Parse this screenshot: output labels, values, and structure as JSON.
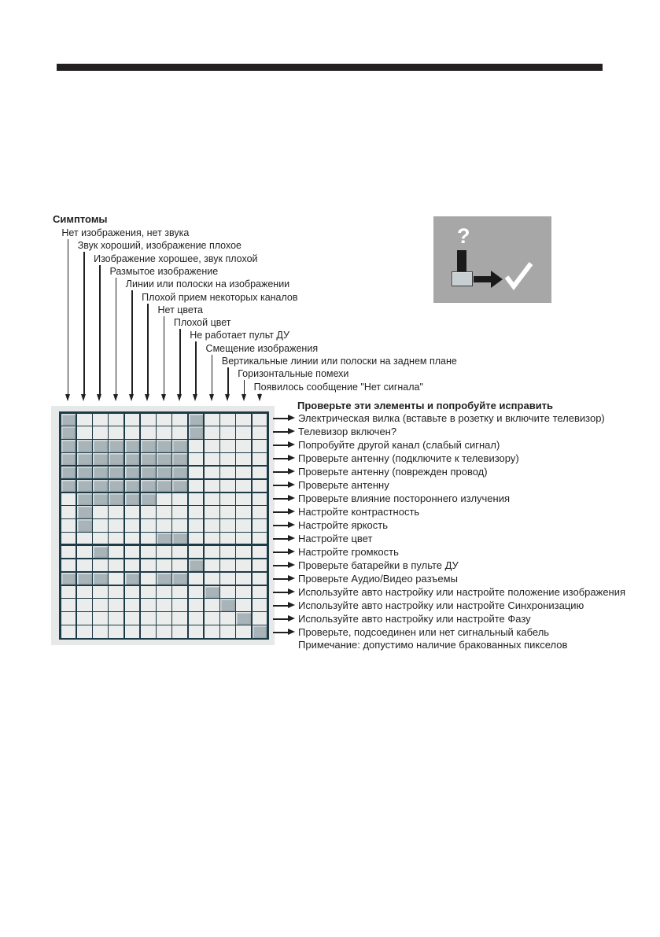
{
  "symptoms": {
    "title": "Симптомы",
    "items": [
      "Нет изображения, нет звука",
      "Звук хороший, изображение плохое",
      "Изображение хорошее, звук плохой",
      "Размытое изображение",
      "Линии или полоски на изображении",
      "Плохой прием некоторых каналов",
      "Нет цвета",
      "Плохой цвет",
      "Не работает пульт ДУ",
      "Смещение изображения",
      "Вертикальные линии или полоски на заднем плане",
      "Горизонтальные помехи",
      "Появилось сообщение \"Нет сигнала\""
    ]
  },
  "remedies": {
    "title": "Проверьте эти элементы и попробуйте исправить",
    "items": [
      "Электрическая вилка (вставьте в розетку и включите телевизор)",
      "Телевизор включен?",
      "Попробуйте другой канал (слабый сигнал)",
      "Проверьте антенну (подключите к телевизору)",
      "Проверьте антенну (поврежден провод)",
      "Проверьте антенну",
      "Проверьте влияние постороннего излучения",
      "Настройте контрастность",
      "Настройте яркость",
      "Настройте цвет",
      "Настройте громкость",
      "Проверьте батарейки в пульте ДУ",
      "Проверьте Аудио/Видео разъемы",
      "Используйте авто настройку или настройте положение изображения",
      "Используйте авто настройку или настройте Синхронизацию",
      "Используйте авто настройку или настройте Фазу",
      "Проверьте, подсоединен или нет сигнальный кабель"
    ],
    "note": "Примечание: допустимо наличие бракованных пикселов"
  },
  "matrix": {
    "columns": 13,
    "rows": 17,
    "filled_cells": [
      [
        1,
        9
      ],
      [
        1,
        9
      ],
      [
        1,
        2,
        3,
        4,
        5,
        6,
        7,
        8
      ],
      [
        1,
        2,
        3,
        4,
        5,
        6,
        7,
        8
      ],
      [
        1,
        2,
        3,
        4,
        5,
        6,
        7,
        8
      ],
      [
        1,
        2,
        3,
        4,
        5,
        6,
        7,
        8
      ],
      [
        2,
        3,
        4,
        5,
        6
      ],
      [
        2
      ],
      [
        2
      ],
      [
        7,
        8
      ],
      [
        3
      ],
      [
        9
      ],
      [
        1,
        2,
        3,
        5,
        7,
        8
      ],
      [
        10
      ],
      [
        11
      ],
      [
        12
      ],
      [
        13
      ]
    ],
    "divider_after_row": 10
  },
  "icons": {
    "question_mark": "?",
    "checkmark": "✓"
  },
  "colors": {
    "rule": "#231f20",
    "grid_border": "#1d3b47",
    "cell_empty": "#ebecec",
    "cell_filled": "#a8b4b8",
    "panel_bg": "#e7e8e8",
    "icon_box_bg": "#a7a7a7",
    "text": "#221f1f"
  }
}
